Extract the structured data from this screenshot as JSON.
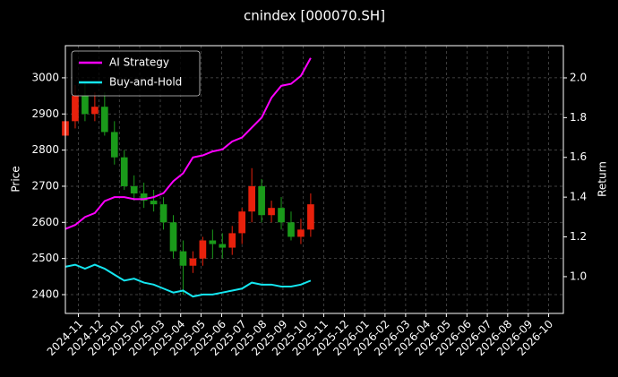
{
  "chart_data": {
    "type": "candlestick",
    "title": "cnindex [000070.SH]",
    "ylabel": "Price",
    "y2label": "Return",
    "grid": true,
    "legend": "upper left",
    "up_color": "#e8210c",
    "down_color": "#1a9a1a",
    "x": [
      2024.78,
      2024.82,
      2024.86,
      2024.9,
      2024.94,
      2024.98,
      2025.02,
      2025.06,
      2025.1,
      2025.14,
      2025.18,
      2025.22,
      2025.26,
      2025.3,
      2025.34,
      2025.38,
      2025.42,
      2025.46,
      2025.5,
      2025.54,
      2025.58,
      2025.62,
      2025.66,
      2025.7,
      2025.74,
      2025.78
    ],
    "open": [
      2840,
      2880,
      2950,
      2900,
      2920,
      2850,
      2780,
      2700,
      2680,
      2660,
      2650,
      2600,
      2520,
      2480,
      2500,
      2550,
      2540,
      2530,
      2570,
      2630,
      2700,
      2620,
      2640,
      2600,
      2560,
      2580
    ],
    "high": [
      2930,
      2980,
      2990,
      2960,
      2960,
      2880,
      2800,
      2730,
      2710,
      2690,
      2670,
      2620,
      2550,
      2520,
      2560,
      2580,
      2570,
      2590,
      2640,
      2750,
      2720,
      2660,
      2670,
      2630,
      2610,
      2680
    ],
    "low": [
      2830,
      2860,
      2880,
      2880,
      2840,
      2760,
      2690,
      2660,
      2640,
      2630,
      2580,
      2500,
      2400,
      2460,
      2480,
      2500,
      2500,
      2510,
      2540,
      2600,
      2600,
      2600,
      2580,
      2550,
      2540,
      2560
    ],
    "close": [
      2880,
      2950,
      2900,
      2920,
      2850,
      2780,
      2700,
      2680,
      2660,
      2650,
      2600,
      2520,
      2480,
      2500,
      2550,
      2540,
      2530,
      2570,
      2630,
      2700,
      2620,
      2640,
      2600,
      2560,
      2580,
      2650
    ],
    "series": [
      {
        "name": "AI Strategy",
        "type": "line",
        "axis": "y2",
        "color": "#ff00ff",
        "values": [
          1.24,
          1.26,
          1.3,
          1.32,
          1.38,
          1.4,
          1.4,
          1.39,
          1.39,
          1.4,
          1.42,
          1.48,
          1.52,
          1.6,
          1.61,
          1.63,
          1.64,
          1.68,
          1.7,
          1.75,
          1.8,
          1.9,
          1.96,
          1.97,
          2.01,
          2.1
        ]
      },
      {
        "name": "Buy-and-Hold",
        "type": "line",
        "axis": "y2",
        "color": "#14e6f0",
        "values": [
          1.05,
          1.06,
          1.04,
          1.06,
          1.04,
          1.01,
          0.98,
          0.99,
          0.97,
          0.96,
          0.94,
          0.92,
          0.93,
          0.9,
          0.91,
          0.91,
          0.92,
          0.93,
          0.94,
          0.97,
          0.96,
          0.96,
          0.95,
          0.95,
          0.96,
          0.98
        ]
      }
    ],
    "xlim": [
      2024.78,
      2026.81
    ],
    "xticks": [
      {
        "value": 2024.833,
        "label": "2024-11"
      },
      {
        "value": 2024.917,
        "label": "2024-12"
      },
      {
        "value": 2025.0,
        "label": "2025-01"
      },
      {
        "value": 2025.083,
        "label": "2025-02"
      },
      {
        "value": 2025.167,
        "label": "2025-03"
      },
      {
        "value": 2025.25,
        "label": "2025-04"
      },
      {
        "value": 2025.333,
        "label": "2025-05"
      },
      {
        "value": 2025.417,
        "label": "2025-06"
      },
      {
        "value": 2025.5,
        "label": "2025-07"
      },
      {
        "value": 2025.583,
        "label": "2025-08"
      },
      {
        "value": 2025.667,
        "label": "2025-09"
      },
      {
        "value": 2025.75,
        "label": "2025-10"
      },
      {
        "value": 2025.833,
        "label": "2025-11"
      },
      {
        "value": 2025.917,
        "label": "2025-12"
      },
      {
        "value": 2026.0,
        "label": "2026-01"
      },
      {
        "value": 2026.083,
        "label": "2026-02"
      },
      {
        "value": 2026.167,
        "label": "2026-03"
      },
      {
        "value": 2026.25,
        "label": "2026-04"
      },
      {
        "value": 2026.333,
        "label": "2026-05"
      },
      {
        "value": 2026.417,
        "label": "2026-06"
      },
      {
        "value": 2026.5,
        "label": "2026-07"
      },
      {
        "value": 2026.583,
        "label": "2026-08"
      },
      {
        "value": 2026.667,
        "label": "2026-09"
      },
      {
        "value": 2026.75,
        "label": "2026-10"
      }
    ],
    "ylim": [
      2348,
      3089
    ],
    "yticks": [
      2400,
      2500,
      2600,
      2700,
      2800,
      2900,
      3000
    ],
    "y2lim": [
      0.815,
      2.162
    ],
    "y2ticks": [
      {
        "value": 1.0,
        "label": "1.0"
      },
      1.2,
      1.4,
      1.6,
      1.8,
      {
        "value": 2.0,
        "label": "2.0"
      }
    ]
  }
}
